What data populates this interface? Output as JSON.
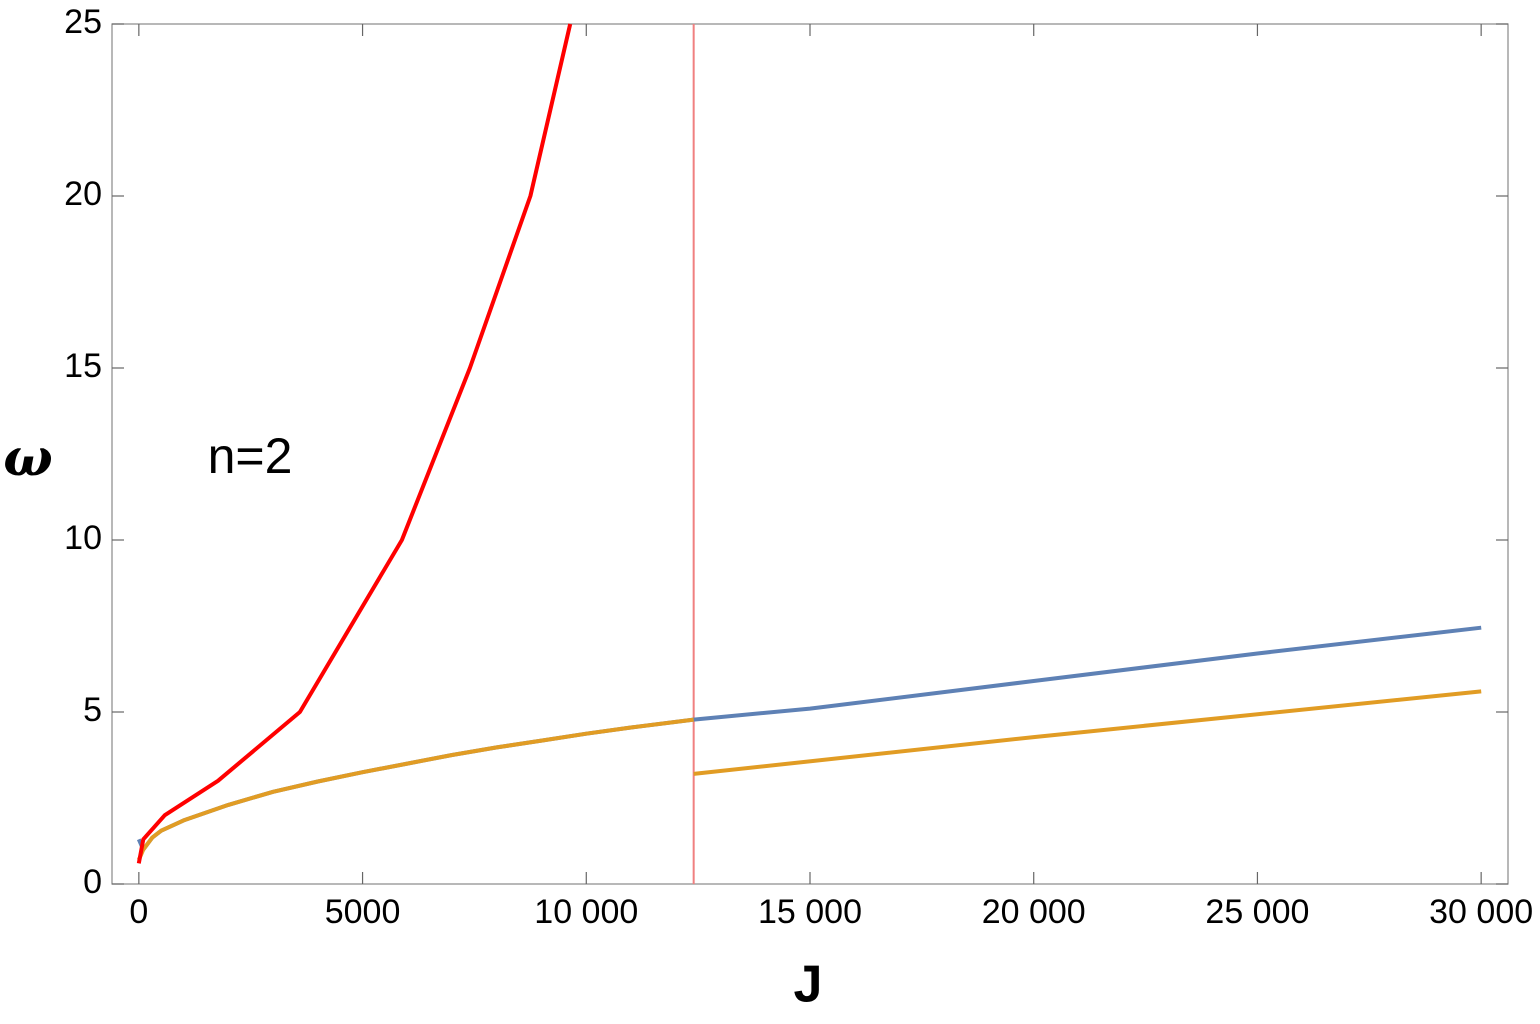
{
  "chart_data": {
    "type": "line",
    "annotation": "n=2",
    "xlabel": "J",
    "ylabel": "ω",
    "xlim": [
      -600,
      30600
    ],
    "ylim": [
      0,
      25
    ],
    "xticks": [
      0,
      5000,
      {
        "value": 10000,
        "label": "10 000"
      },
      {
        "value": 15000,
        "label": "15 000"
      },
      {
        "value": 20000,
        "label": "20 000"
      },
      {
        "value": 25000,
        "label": "25 000"
      },
      {
        "value": 30000,
        "label": "30 000"
      }
    ],
    "yticks": [
      0,
      5,
      10,
      15,
      20,
      25
    ],
    "vline": 12400,
    "vline_color": "#f08080",
    "series": [
      {
        "color": "#5e81b5",
        "x": [
          0,
          100,
          300,
          500,
          1000,
          2000,
          3000,
          4000,
          5000,
          6000,
          7000,
          8000,
          9000,
          10000,
          11000,
          12400,
          15000,
          20000,
          25000,
          30000
        ],
        "values": [
          1.3,
          1.0,
          1.35,
          1.55,
          1.85,
          2.3,
          2.68,
          2.98,
          3.25,
          3.5,
          3.75,
          3.97,
          4.17,
          4.37,
          4.55,
          4.78,
          5.1,
          5.9,
          6.7,
          7.45
        ]
      },
      {
        "color": "#e19c24",
        "x": [
          0,
          100,
          300,
          500,
          1000,
          2000,
          3000,
          4000,
          5000,
          6000,
          7000,
          8000,
          9000,
          10000,
          11000,
          12400,
          null,
          12400,
          20000,
          30000
        ],
        "values": [
          0.7,
          1.0,
          1.35,
          1.55,
          1.85,
          2.3,
          2.68,
          2.98,
          3.25,
          3.5,
          3.75,
          3.97,
          4.17,
          4.37,
          4.55,
          4.78,
          null,
          3.2,
          4.27,
          5.6
        ]
      },
      {
        "color": "#ff0000",
        "x": [
          0,
          100,
          580,
          1770,
          3600,
          5880,
          7400,
          8750,
          9640
        ],
        "values": [
          0.6,
          1.3,
          2,
          3,
          5,
          10,
          15,
          20,
          25
        ]
      }
    ]
  }
}
